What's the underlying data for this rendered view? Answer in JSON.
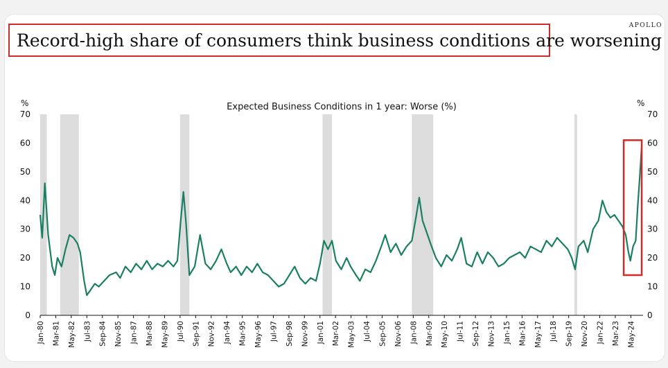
{
  "brand": "APOLLO",
  "headline": "Record-high share of consumers think business conditions are worsening",
  "chart_data": {
    "type": "line",
    "title": "Expected Business Conditions in 1 year: Worse (%)",
    "ylabel_left": "%",
    "ylabel_right": "%",
    "ylim": [
      0,
      70
    ],
    "yticks": [
      0,
      10,
      20,
      30,
      40,
      50,
      60,
      70
    ],
    "xlim": [
      1980.0,
      2025.25
    ],
    "x_tick_labels": [
      "Jan-80",
      "Mar-81",
      "May-82",
      "Jul-83",
      "Sep-84",
      "Nov-85",
      "Jan-87",
      "Mar-88",
      "May-89",
      "Jul-90",
      "Sep-91",
      "Nov-92",
      "Jan-94",
      "Mar-95",
      "May-96",
      "Jul-97",
      "Sep-98",
      "Nov-99",
      "Jan-01",
      "Mar-02",
      "May-03",
      "Jul-04",
      "Sep-05",
      "Nov-06",
      "Jan-08",
      "Mar-09",
      "May-10",
      "Jul-11",
      "Sep-12",
      "Nov-13",
      "Jan-15",
      "Mar-16",
      "May-17",
      "Jul-18",
      "Sep-19",
      "Nov-20",
      "Jan-22",
      "Mar-23",
      "May-24"
    ],
    "recessions": [
      [
        1980.0,
        1980.5
      ],
      [
        1981.5,
        1982.9
      ],
      [
        1990.5,
        1991.2
      ],
      [
        2001.2,
        2001.9
      ],
      [
        2007.9,
        2009.5
      ],
      [
        2020.1,
        2020.3
      ]
    ],
    "highlight_range": [
      2023.8,
      2025.15
    ],
    "highlight_yrange": [
      14,
      61
    ],
    "series": [
      {
        "name": "Worse (%)",
        "color": "#1a7f62",
        "points": [
          [
            1980.0,
            35
          ],
          [
            1980.15,
            27
          ],
          [
            1980.35,
            46
          ],
          [
            1980.6,
            28
          ],
          [
            1980.9,
            17
          ],
          [
            1981.1,
            14
          ],
          [
            1981.3,
            20
          ],
          [
            1981.6,
            17
          ],
          [
            1981.9,
            23
          ],
          [
            1982.2,
            28
          ],
          [
            1982.5,
            27
          ],
          [
            1982.8,
            25
          ],
          [
            1983.0,
            22
          ],
          [
            1983.3,
            12
          ],
          [
            1983.5,
            7
          ],
          [
            1983.8,
            9
          ],
          [
            1984.1,
            11
          ],
          [
            1984.4,
            10
          ],
          [
            1984.8,
            12
          ],
          [
            1985.2,
            14
          ],
          [
            1985.7,
            15
          ],
          [
            1986.0,
            13
          ],
          [
            1986.4,
            17
          ],
          [
            1986.8,
            15
          ],
          [
            1987.2,
            18
          ],
          [
            1987.6,
            16
          ],
          [
            1988.0,
            19
          ],
          [
            1988.4,
            16
          ],
          [
            1988.8,
            18
          ],
          [
            1989.2,
            17
          ],
          [
            1989.6,
            19
          ],
          [
            1990.0,
            17
          ],
          [
            1990.3,
            19
          ],
          [
            1990.55,
            33
          ],
          [
            1990.75,
            43
          ],
          [
            1990.95,
            32
          ],
          [
            1991.2,
            14
          ],
          [
            1991.6,
            17
          ],
          [
            1992.0,
            28
          ],
          [
            1992.4,
            18
          ],
          [
            1992.8,
            16
          ],
          [
            1993.2,
            19
          ],
          [
            1993.6,
            23
          ],
          [
            1994.0,
            18
          ],
          [
            1994.3,
            15
          ],
          [
            1994.7,
            17
          ],
          [
            1995.1,
            14
          ],
          [
            1995.5,
            17
          ],
          [
            1995.9,
            15
          ],
          [
            1996.3,
            18
          ],
          [
            1996.7,
            15
          ],
          [
            1997.1,
            14
          ],
          [
            1997.5,
            12
          ],
          [
            1997.9,
            10
          ],
          [
            1998.3,
            11
          ],
          [
            1998.7,
            14
          ],
          [
            1999.1,
            17
          ],
          [
            1999.5,
            13
          ],
          [
            1999.9,
            11
          ],
          [
            2000.3,
            13
          ],
          [
            2000.7,
            12
          ],
          [
            2001.0,
            18
          ],
          [
            2001.3,
            26
          ],
          [
            2001.6,
            23
          ],
          [
            2001.9,
            26
          ],
          [
            2002.2,
            19
          ],
          [
            2002.6,
            16
          ],
          [
            2003.0,
            20
          ],
          [
            2003.3,
            17
          ],
          [
            2003.7,
            14
          ],
          [
            2004.0,
            12
          ],
          [
            2004.4,
            16
          ],
          [
            2004.8,
            15
          ],
          [
            2005.2,
            19
          ],
          [
            2005.6,
            24
          ],
          [
            2005.9,
            28
          ],
          [
            2006.3,
            22
          ],
          [
            2006.7,
            25
          ],
          [
            2007.1,
            21
          ],
          [
            2007.5,
            24
          ],
          [
            2007.9,
            26
          ],
          [
            2008.2,
            34
          ],
          [
            2008.45,
            41
          ],
          [
            2008.7,
            33
          ],
          [
            2009.0,
            29
          ],
          [
            2009.3,
            25
          ],
          [
            2009.7,
            20
          ],
          [
            2010.1,
            17
          ],
          [
            2010.5,
            21
          ],
          [
            2010.9,
            19
          ],
          [
            2011.3,
            23
          ],
          [
            2011.6,
            27
          ],
          [
            2012.0,
            18
          ],
          [
            2012.4,
            17
          ],
          [
            2012.8,
            22
          ],
          [
            2013.2,
            18
          ],
          [
            2013.6,
            22
          ],
          [
            2014.0,
            20
          ],
          [
            2014.4,
            17
          ],
          [
            2014.8,
            18
          ],
          [
            2015.2,
            20
          ],
          [
            2015.6,
            21
          ],
          [
            2016.0,
            22
          ],
          [
            2016.4,
            20
          ],
          [
            2016.8,
            24
          ],
          [
            2017.2,
            23
          ],
          [
            2017.6,
            22
          ],
          [
            2018.0,
            26
          ],
          [
            2018.4,
            24
          ],
          [
            2018.8,
            27
          ],
          [
            2019.2,
            25
          ],
          [
            2019.6,
            23
          ],
          [
            2019.9,
            20
          ],
          [
            2020.15,
            16
          ],
          [
            2020.4,
            24
          ],
          [
            2020.8,
            26
          ],
          [
            2021.1,
            22
          ],
          [
            2021.5,
            30
          ],
          [
            2021.9,
            33
          ],
          [
            2022.2,
            40
          ],
          [
            2022.5,
            36
          ],
          [
            2022.8,
            34
          ],
          [
            2023.1,
            35
          ],
          [
            2023.4,
            33
          ],
          [
            2023.7,
            31
          ],
          [
            2023.95,
            28
          ],
          [
            2024.15,
            22
          ],
          [
            2024.3,
            19
          ],
          [
            2024.5,
            24
          ],
          [
            2024.7,
            26
          ],
          [
            2024.85,
            38
          ],
          [
            2025.0,
            48
          ],
          [
            2025.15,
            59
          ]
        ]
      }
    ]
  }
}
